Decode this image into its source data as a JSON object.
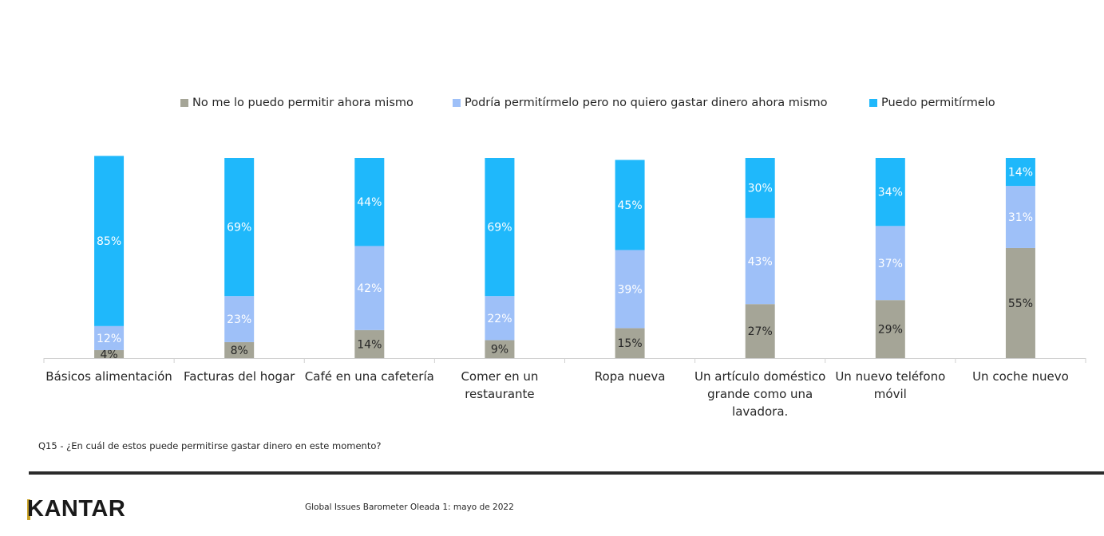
{
  "legend": {
    "item1": {
      "label": "No me lo puedo permitir ahora mismo",
      "color": "#A5A597"
    },
    "item2": {
      "label": "Podría permitírmelo pero no quiero gastar dinero ahora mismo",
      "color": "#9EC0F8"
    },
    "item3": {
      "label": "Puedo permitírmelo",
      "color": "#1FB8FB"
    }
  },
  "chart_data": {
    "type": "bar",
    "stacked": true,
    "categories": [
      "Básicos alimentación",
      "Facturas del hogar",
      "Café en una cafetería",
      "Comer en un restaurante",
      "Ropa nueva",
      "Un artículo doméstico grande como una lavadora.",
      "Un nuevo teléfono móvil",
      "Un coche nuevo"
    ],
    "category_lines": [
      [
        "Básicos alimentación"
      ],
      [
        "Facturas del hogar"
      ],
      [
        "Café en una cafetería"
      ],
      [
        "Comer en un",
        "restaurante"
      ],
      [
        "Ropa nueva"
      ],
      [
        "Un artículo doméstico",
        "grande como una",
        "lavadora."
      ],
      [
        "Un nuevo teléfono",
        "móvil"
      ],
      [
        "Un coche nuevo"
      ]
    ],
    "series": [
      {
        "name": "No me lo puedo permitir ahora mismo",
        "color": "#A5A597",
        "values": [
          4,
          8,
          14,
          9,
          15,
          27,
          29,
          55
        ]
      },
      {
        "name": "Podría permitírmelo pero no quiero gastar dinero ahora mismo",
        "color": "#9EC0F8",
        "values": [
          12,
          23,
          42,
          22,
          39,
          43,
          37,
          31
        ]
      },
      {
        "name": "Puedo permitírmelo",
        "color": "#1FB8FB",
        "values": [
          85,
          69,
          44,
          69,
          45,
          30,
          34,
          14
        ]
      }
    ],
    "data_labels": [
      [
        "4%",
        "8%",
        "14%",
        "9%",
        "15%",
        "27%",
        "29%",
        "55%"
      ],
      [
        "12%",
        "23%",
        "42%",
        "22%",
        "39%",
        "43%",
        "37%",
        "31%"
      ],
      [
        "85%",
        "69%",
        "44%",
        "69%",
        "45%",
        "30%",
        "34%",
        "14%"
      ]
    ],
    "ylim": [
      0,
      100
    ],
    "legend_position": "top",
    "grid": false
  },
  "footer": {
    "question": "Q15 - ¿En cuál de estos puede permitirse gastar dinero en este momento?",
    "brand": "KANTAR",
    "source": "Global Issues Barometer Oleada 1: mayo de 2022"
  }
}
